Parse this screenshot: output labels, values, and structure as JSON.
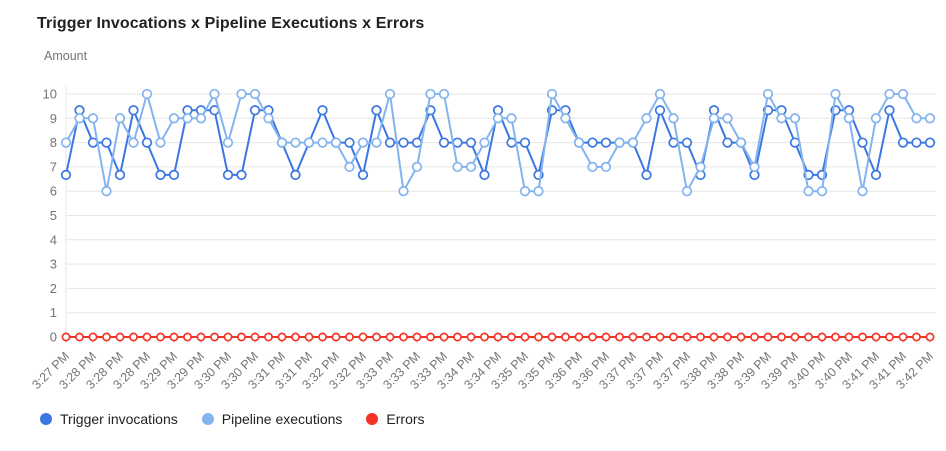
{
  "page": {
    "title": "Trigger Invocations x Pipeline Executions x Errors",
    "y_axis_title": "Amount"
  },
  "legend": {
    "items": [
      {
        "label": "Trigger invocations",
        "color": "#3b77e3"
      },
      {
        "label": "Pipeline executions",
        "color": "#84b4f0"
      },
      {
        "label": "Errors",
        "color": "#f43325"
      }
    ]
  },
  "colors": {
    "grid": "#e6e6e6",
    "tick_mark": "#cfcfcf",
    "axis_text": "#757575",
    "title_text": "#212121"
  },
  "chart_data": {
    "type": "line",
    "title": "Trigger Invocations x Pipeline Executions x Errors",
    "xlabel": "",
    "ylabel": "Amount",
    "ylim": [
      0,
      10
    ],
    "y_ticks": [
      0,
      1,
      2,
      3,
      4,
      5,
      6,
      7,
      8,
      9,
      10
    ],
    "grid": true,
    "legend_position": "bottom",
    "marker": "open-circle",
    "x_tick_every": 2,
    "x_tick_labels": [
      "3:27 PM",
      "3:28 PM",
      "3:28 PM",
      "3:28 PM",
      "3:29 PM",
      "3:29 PM",
      "3:30 PM",
      "3:30 PM",
      "3:31 PM",
      "3:31 PM",
      "3:32 PM",
      "3:32 PM",
      "3:33 PM",
      "3:33 PM",
      "3:33 PM",
      "3:34 PM",
      "3:34 PM",
      "3:35 PM",
      "3:35 PM",
      "3:36 PM",
      "3:36 PM",
      "3:37 PM",
      "3:37 PM",
      "3:37 PM",
      "3:38 PM",
      "3:38 PM",
      "3:39 PM",
      "3:39 PM",
      "3:40 PM",
      "3:40 PM",
      "3:41 PM",
      "3:41 PM",
      "3:42 PM"
    ],
    "series": [
      {
        "name": "Trigger invocations",
        "color": "#3b77e3",
        "values": [
          6.67,
          9.33,
          8,
          8,
          6.67,
          9.33,
          8,
          6.67,
          6.67,
          9.33,
          9.33,
          9.33,
          6.67,
          6.67,
          9.33,
          9.33,
          8,
          6.67,
          8,
          9.33,
          8,
          8,
          6.67,
          9.33,
          8,
          8,
          8,
          9.33,
          8,
          8,
          8,
          6.67,
          9.33,
          8,
          8,
          6.67,
          9.33,
          9.33,
          8,
          8,
          8,
          8,
          8,
          6.67,
          9.33,
          8,
          8,
          6.67,
          9.33,
          8,
          8,
          6.67,
          9.33,
          9.33,
          8,
          6.67,
          6.67,
          9.33,
          9.33,
          8,
          6.67,
          9.33,
          8,
          8,
          8
        ]
      },
      {
        "name": "Pipeline executions",
        "color": "#84b4f0",
        "values": [
          8,
          9,
          9,
          6,
          9,
          8,
          10,
          8,
          9,
          9,
          9,
          10,
          8,
          10,
          10,
          9,
          8,
          8,
          8,
          8,
          8,
          7,
          8,
          8,
          10,
          6,
          7,
          10,
          10,
          7,
          7,
          8,
          9,
          9,
          6,
          6,
          10,
          9,
          8,
          7,
          7,
          8,
          8,
          9,
          10,
          9,
          6,
          7,
          9,
          9,
          8,
          7,
          10,
          9,
          9,
          6,
          6,
          10,
          9,
          6,
          9,
          10,
          10,
          9,
          9
        ]
      },
      {
        "name": "Errors",
        "color": "#f43325",
        "values": [
          0,
          0,
          0,
          0,
          0,
          0,
          0,
          0,
          0,
          0,
          0,
          0,
          0,
          0,
          0,
          0,
          0,
          0,
          0,
          0,
          0,
          0,
          0,
          0,
          0,
          0,
          0,
          0,
          0,
          0,
          0,
          0,
          0,
          0,
          0,
          0,
          0,
          0,
          0,
          0,
          0,
          0,
          0,
          0,
          0,
          0,
          0,
          0,
          0,
          0,
          0,
          0,
          0,
          0,
          0,
          0,
          0,
          0,
          0,
          0,
          0,
          0,
          0,
          0,
          0
        ]
      }
    ]
  }
}
